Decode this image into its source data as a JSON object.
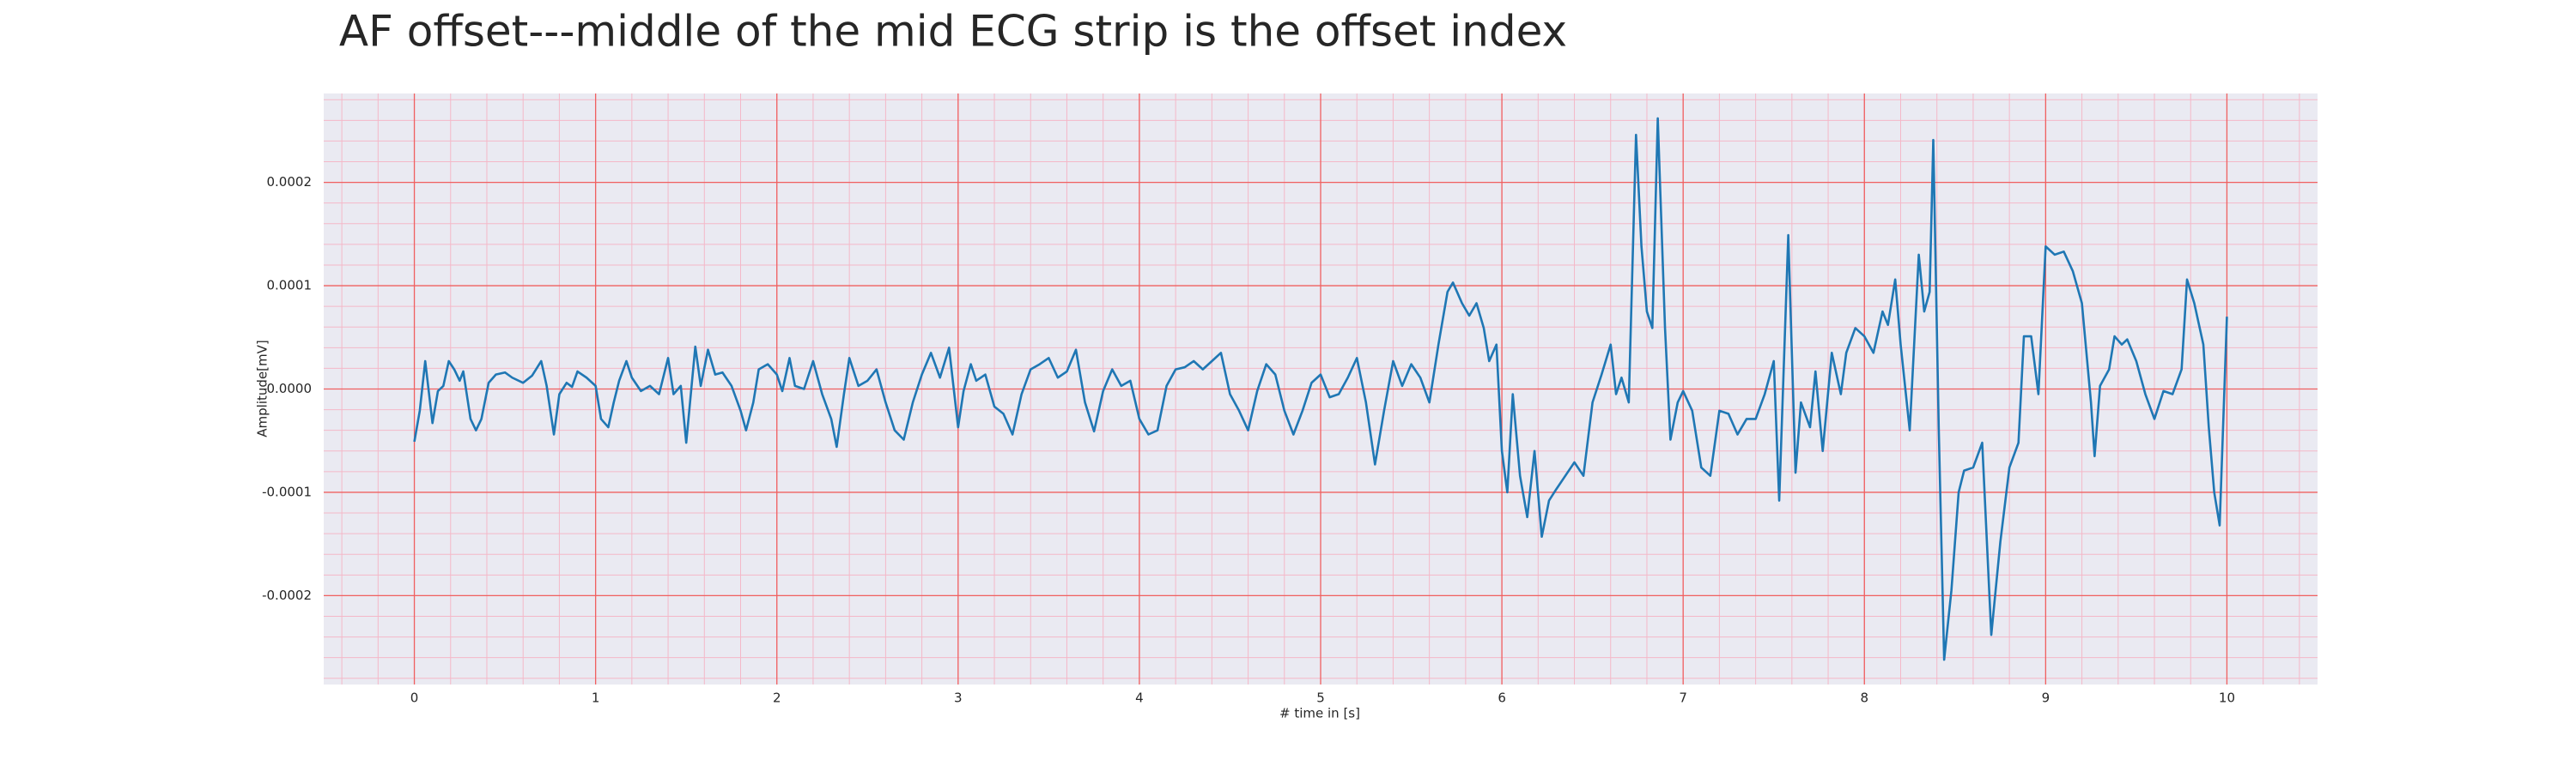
{
  "chart_data": {
    "type": "line",
    "title": "AF offset---middle of the mid ECG strip is the offset index",
    "x_label": "# time in [s]",
    "y_label": "Amplitude[mV]",
    "color": "#1f77b4",
    "grid": true,
    "minor_grid": true,
    "xlim": [
      -0.5,
      10.5
    ],
    "ylim": [
      -0.000286,
      0.000286
    ],
    "xticks": [
      0,
      1,
      2,
      3,
      4,
      5,
      6,
      7,
      8,
      9,
      10
    ],
    "yticks": [
      -0.0002,
      -0.0001,
      {
        "value": 0,
        "label": "0.0000"
      },
      0.0001,
      0.0002
    ],
    "x": [
      0,
      0.03,
      0.06,
      0.1,
      0.13,
      0.16,
      0.19,
      0.22,
      0.25,
      0.27,
      0.31,
      0.34,
      0.37,
      0.41,
      0.45,
      0.5,
      0.54,
      0.6,
      0.65,
      0.7,
      0.73,
      0.77,
      0.8,
      0.84,
      0.87,
      0.9,
      0.95,
      1.0,
      1.03,
      1.07,
      1.1,
      1.13,
      1.17,
      1.2,
      1.25,
      1.3,
      1.35,
      1.4,
      1.43,
      1.47,
      1.5,
      1.55,
      1.58,
      1.62,
      1.66,
      1.7,
      1.75,
      1.8,
      1.83,
      1.87,
      1.9,
      1.95,
      2.0,
      2.03,
      2.07,
      2.1,
      2.15,
      2.2,
      2.25,
      2.3,
      2.33,
      2.37,
      2.4,
      2.45,
      2.5,
      2.55,
      2.6,
      2.65,
      2.7,
      2.75,
      2.8,
      2.85,
      2.9,
      2.95,
      3.0,
      3.03,
      3.07,
      3.1,
      3.15,
      3.2,
      3.25,
      3.3,
      3.35,
      3.4,
      3.45,
      3.5,
      3.55,
      3.6,
      3.65,
      3.7,
      3.75,
      3.8,
      3.85,
      3.9,
      3.95,
      4.0,
      4.05,
      4.1,
      4.15,
      4.2,
      4.25,
      4.3,
      4.35,
      4.4,
      4.45,
      4.5,
      4.55,
      4.6,
      4.65,
      4.7,
      4.75,
      4.8,
      4.85,
      4.9,
      4.95,
      5.0,
      5.05,
      5.1,
      5.15,
      5.2,
      5.25,
      5.3,
      5.35,
      5.4,
      5.45,
      5.5,
      5.55,
      5.6,
      5.65,
      5.7,
      5.73,
      5.78,
      5.82,
      5.86,
      5.9,
      5.93,
      5.97,
      6.0,
      6.03,
      6.06,
      6.1,
      6.14,
      6.18,
      6.22,
      6.26,
      6.3,
      6.35,
      6.4,
      6.45,
      6.5,
      6.55,
      6.6,
      6.63,
      6.66,
      6.7,
      6.74,
      6.77,
      6.8,
      6.83,
      6.86,
      6.9,
      6.93,
      6.97,
      7.0,
      7.05,
      7.1,
      7.15,
      7.2,
      7.25,
      7.3,
      7.35,
      7.4,
      7.45,
      7.5,
      7.53,
      7.58,
      7.62,
      7.65,
      7.7,
      7.73,
      7.77,
      7.82,
      7.87,
      7.9,
      7.95,
      8.0,
      8.05,
      8.1,
      8.13,
      8.17,
      8.2,
      8.25,
      8.3,
      8.33,
      8.36,
      8.38,
      8.41,
      8.44,
      8.48,
      8.52,
      8.55,
      8.6,
      8.65,
      8.7,
      8.75,
      8.8,
      8.85,
      8.88,
      8.92,
      8.96,
      9.0,
      9.05,
      9.1,
      9.15,
      9.2,
      9.25,
      9.27,
      9.3,
      9.35,
      9.38,
      9.42,
      9.45,
      9.5,
      9.55,
      9.6,
      9.65,
      9.7,
      9.75,
      9.78,
      9.82,
      9.87,
      9.9,
      9.93,
      9.96,
      10.0
    ],
    "values": [
      -5.1e-05,
      -2.1e-05,
      2.7e-05,
      -3.3e-05,
      -2e-06,
      3e-06,
      2.7e-05,
      1.9e-05,
      8e-06,
      1.7e-05,
      -2.9e-05,
      -4e-05,
      -2.9e-05,
      6e-06,
      1.4e-05,
      1.6e-05,
      1.1e-05,
      6e-06,
      1.3e-05,
      2.7e-05,
      3e-06,
      -4.4e-05,
      -5e-06,
      6e-06,
      2e-06,
      1.7e-05,
      1.1e-05,
      3e-06,
      -2.9e-05,
      -3.7e-05,
      -1.3e-05,
      8e-06,
      2.7e-05,
      1.1e-05,
      -2e-06,
      3e-06,
      -5e-06,
      3e-05,
      -5e-06,
      3e-06,
      -5.2e-05,
      4.1e-05,
      3e-06,
      3.8e-05,
      1.4e-05,
      1.6e-05,
      3e-06,
      -2.1e-05,
      -4e-05,
      -1.3e-05,
      1.9e-05,
      2.4e-05,
      1.4e-05,
      -2e-06,
      3e-05,
      3e-06,
      0,
      2.7e-05,
      -5e-06,
      -2.9e-05,
      -5.6e-05,
      -5e-06,
      3e-05,
      3e-06,
      8e-06,
      1.9e-05,
      -1.3e-05,
      -4e-05,
      -4.9e-05,
      -1.3e-05,
      1.4e-05,
      3.5e-05,
      1.1e-05,
      4e-05,
      -3.7e-05,
      -2e-06,
      2.4e-05,
      8e-06,
      1.4e-05,
      -1.7e-05,
      -2.4e-05,
      -4.4e-05,
      -5e-06,
      1.9e-05,
      2.4e-05,
      3e-05,
      1.1e-05,
      1.7e-05,
      3.8e-05,
      -1.3e-05,
      -4.1e-05,
      -2e-06,
      1.9e-05,
      3e-06,
      8e-06,
      -2.9e-05,
      -4.4e-05,
      -4e-05,
      3e-06,
      1.9e-05,
      2.1e-05,
      2.7e-05,
      1.9e-05,
      2.7e-05,
      3.5e-05,
      -5e-06,
      -2.1e-05,
      -4e-05,
      -2e-06,
      2.4e-05,
      1.4e-05,
      -2.1e-05,
      -4.4e-05,
      -2.1e-05,
      6e-06,
      1.4e-05,
      -8e-06,
      -5e-06,
      1.1e-05,
      3e-05,
      -1.3e-05,
      -7.3e-05,
      -2.1e-05,
      2.7e-05,
      3e-06,
      2.4e-05,
      1.1e-05,
      -1.3e-05,
      4.3e-05,
      9.4e-05,
      0.000103,
      8.3e-05,
      7.1e-05,
      8.3e-05,
      5.9e-05,
      2.7e-05,
      4.3e-05,
      -6e-05,
      -0.0001,
      -5e-06,
      -8.4e-05,
      -0.000124,
      -6e-05,
      -0.000143,
      -0.000108,
      -9.7e-05,
      -8.4e-05,
      -7.1e-05,
      -8.4e-05,
      -1.3e-05,
      1.4e-05,
      4.3e-05,
      -5e-06,
      1.1e-05,
      -1.3e-05,
      0.000246,
      0.000138,
      7.5e-05,
      5.9e-05,
      0.000262,
      5.9e-05,
      -4.9e-05,
      -1.3e-05,
      -2e-06,
      -2.1e-05,
      -7.6e-05,
      -8.4e-05,
      -2.1e-05,
      -2.4e-05,
      -4.4e-05,
      -2.9e-05,
      -2.9e-05,
      -5e-06,
      2.7e-05,
      -0.000108,
      0.000149,
      -8.1e-05,
      -1.3e-05,
      -3.7e-05,
      1.7e-05,
      -6e-05,
      3.5e-05,
      -5e-06,
      3.5e-05,
      5.9e-05,
      5.1e-05,
      3.5e-05,
      7.5e-05,
      6.2e-05,
      0.000106,
      4.3e-05,
      -4e-05,
      0.00013,
      7.5e-05,
      9.4e-05,
      0.000241,
      -3.7e-05,
      -0.000262,
      -0.000195,
      -0.0001,
      -7.9e-05,
      -7.6e-05,
      -5.2e-05,
      -0.000238,
      -0.000148,
      -7.6e-05,
      -5.2e-05,
      5.1e-05,
      5.1e-05,
      -5e-06,
      0.000138,
      0.00013,
      0.000133,
      0.000114,
      8.3e-05,
      -1.3e-05,
      -6.5e-05,
      3e-06,
      1.9e-05,
      5.1e-05,
      4.3e-05,
      4.8e-05,
      2.7e-05,
      -5e-06,
      -2.9e-05,
      -2e-06,
      -5e-06,
      1.9e-05,
      0.000106,
      8.3e-05,
      4.3e-05,
      -3.7e-05,
      -0.0001,
      -0.000132,
      7e-05
    ]
  }
}
